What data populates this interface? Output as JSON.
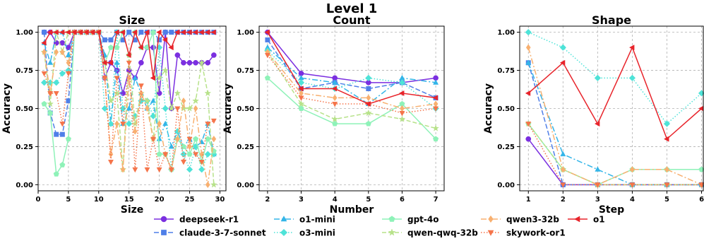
{
  "suptitle": "Level 1",
  "colors": {
    "deepseek-r1": "#7b2fe0",
    "claude-3-7-sonnet": "#4f7fe8",
    "o1-mini": "#33b5e8",
    "o3-mini": "#4ee3d8",
    "gpt-4o": "#8ef2b8",
    "qwen-qwq-32b": "#b7e28a",
    "qwen3-32b": "#f8b070",
    "skywork-or1": "#f5744a",
    "o1": "#e8242b"
  },
  "legend": {
    "placement": "bottom",
    "entries": [
      "deepseek-r1",
      "claude-3-7-sonnet",
      "o1-mini",
      "o3-mini",
      "gpt-4o",
      "qwen-qwq-32b",
      "qwen3-32b",
      "skywork-or1",
      "o1"
    ]
  },
  "chart_data": [
    {
      "type": "line",
      "title": "Size",
      "xlabel": "Size",
      "ylabel": "Accuracy",
      "xlim": [
        0,
        31
      ],
      "ylim": [
        -0.04,
        1.04
      ],
      "xticks": [
        0,
        5,
        10,
        15,
        20,
        25,
        30
      ],
      "yticks": [
        "0.00",
        "0.25",
        "0.50",
        "0.75",
        "1.00"
      ],
      "grid": true,
      "x": [
        1,
        2,
        3,
        4,
        5,
        6,
        7,
        8,
        9,
        10,
        11,
        12,
        13,
        14,
        15,
        16,
        17,
        18,
        19,
        20,
        21,
        22,
        23,
        24,
        25,
        26,
        27,
        28,
        29
      ],
      "series": [
        {
          "name": "deepseek-r1",
          "values": [
            1.0,
            1.0,
            0.93,
            0.93,
            0.9,
            1.0,
            1.0,
            1.0,
            1.0,
            1.0,
            0.7,
            0.8,
            0.75,
            0.6,
            0.75,
            0.7,
            0.8,
            0.9,
            0.9,
            0.6,
            1.0,
            0.5,
            0.85,
            0.8,
            0.8,
            0.8,
            0.8,
            0.8,
            0.85
          ]
        },
        {
          "name": "claude-3-7-sonnet",
          "values": [
            1.0,
            0.47,
            0.33,
            0.33,
            0.55,
            1.0,
            1.0,
            1.0,
            1.0,
            1.0,
            0.95,
            0.95,
            1.0,
            0.95,
            1.0,
            0.95,
            1.0,
            1.0,
            1.0,
            0.95,
            1.0,
            1.0,
            1.0,
            1.0,
            1.0,
            1.0,
            1.0,
            1.0,
            1.0
          ]
        },
        {
          "name": "o1-mini",
          "values": [
            0.93,
            0.8,
            1.0,
            1.0,
            0.85,
            1.0,
            1.0,
            1.0,
            1.0,
            1.0,
            0.85,
            0.4,
            0.8,
            0.4,
            0.5,
            0.7,
            0.6,
            0.5,
            0.55,
            0.3,
            0.4,
            0.25,
            0.35,
            0.25,
            0.3,
            0.25,
            0.28,
            0.4,
            0.2
          ]
        },
        {
          "name": "o3-mini",
          "values": [
            0.67,
            0.67,
            0.67,
            0.73,
            0.75,
            1.0,
            1.0,
            1.0,
            1.0,
            1.0,
            0.5,
            0.4,
            1.0,
            0.5,
            0.4,
            0.45,
            0.55,
            0.55,
            0.45,
            0.9,
            0.5,
            0.1,
            0.35,
            0.2,
            0.1,
            0.25,
            0.1,
            0.2,
            0.2
          ]
        },
        {
          "name": "gpt-4o",
          "values": [
            0.53,
            0.47,
            0.07,
            0.13,
            0.3,
            1.0,
            1.0,
            1.0,
            1.0,
            1.0,
            0.8,
            0.9,
            0.9,
            1.0,
            0.85,
            1.0,
            0.9,
            0.9,
            1.0,
            0.2,
            0.2,
            0.1,
            0.3,
            0.25,
            0.2,
            0.3,
            0.15,
            0.3,
            0.22
          ]
        },
        {
          "name": "qwen-qwq-32b",
          "values": [
            0.87,
            0.53,
            1.0,
            0.87,
            1.0,
            1.0,
            1.0,
            1.0,
            1.0,
            1.0,
            0.8,
            0.55,
            0.6,
            0.1,
            0.85,
            0.4,
            0.6,
            0.55,
            0.3,
            0.7,
            0.75,
            0.5,
            0.6,
            0.5,
            0.5,
            0.55,
            0.8,
            0.6,
            0.0
          ]
        },
        {
          "name": "qwen3-32b",
          "values": [
            0.87,
            0.6,
            0.87,
            0.87,
            0.8,
            1.0,
            1.0,
            1.0,
            1.0,
            1.0,
            0.7,
            0.2,
            0.4,
            0.1,
            0.7,
            0.35,
            0.6,
            0.5,
            0.3,
            0.4,
            0.2,
            0.1,
            0.3,
            0.55,
            0.25,
            0.5,
            0.2,
            0.0,
            0.3
          ]
        },
        {
          "name": "skywork-or1",
          "values": [
            0.73,
            0.6,
            0.6,
            0.4,
            0.73,
            1.0,
            1.0,
            1.0,
            1.0,
            1.0,
            0.7,
            0.15,
            0.7,
            0.4,
            0.8,
            0.1,
            0.65,
            0.1,
            0.3,
            0.1,
            0.2,
            0.1,
            0.5,
            0.15,
            0.3,
            0.2,
            0.15,
            0.4,
            0.42
          ]
        },
        {
          "name": "o1",
          "values": [
            0.93,
            1.0,
            1.0,
            1.0,
            1.0,
            1.0,
            1.0,
            1.0,
            1.0,
            1.0,
            0.8,
            0.8,
            1.0,
            1.0,
            0.85,
            1.0,
            0.9,
            1.0,
            0.7,
            1.0,
            0.95,
            0.9,
            1.0,
            1.0,
            1.0,
            1.0,
            1.0,
            1.0,
            1.0
          ]
        }
      ]
    },
    {
      "type": "line",
      "title": "Count",
      "xlabel": "Number",
      "ylabel": "Accuracy",
      "xlim": [
        1.75,
        7.25
      ],
      "ylim": [
        -0.04,
        1.04
      ],
      "xticks": [
        2,
        3,
        4,
        5,
        6,
        7
      ],
      "yticks": [
        "0.00",
        "0.25",
        "0.50",
        "0.75",
        "1.00"
      ],
      "grid": true,
      "x": [
        2,
        3,
        4,
        5,
        6,
        7
      ],
      "series": [
        {
          "name": "deepseek-r1",
          "values": [
            1.0,
            0.73,
            0.7,
            0.67,
            0.67,
            0.7
          ]
        },
        {
          "name": "claude-3-7-sonnet",
          "values": [
            0.95,
            0.63,
            0.67,
            0.63,
            0.67,
            0.57
          ]
        },
        {
          "name": "o1-mini",
          "values": [
            0.9,
            0.7,
            0.67,
            0.53,
            0.7,
            0.67
          ]
        },
        {
          "name": "o3-mini",
          "values": [
            0.88,
            0.67,
            0.63,
            0.7,
            0.67,
            0.5
          ]
        },
        {
          "name": "gpt-4o",
          "values": [
            0.7,
            0.5,
            0.4,
            0.4,
            0.53,
            0.3
          ]
        },
        {
          "name": "qwen-qwq-32b",
          "values": [
            0.87,
            0.53,
            0.43,
            0.47,
            0.43,
            0.37
          ]
        },
        {
          "name": "qwen3-32b",
          "values": [
            0.87,
            0.6,
            0.57,
            0.57,
            0.5,
            0.53
          ]
        },
        {
          "name": "skywork-or1",
          "values": [
            0.85,
            0.57,
            0.53,
            0.53,
            0.47,
            0.5
          ]
        },
        {
          "name": "o1",
          "values": [
            1.0,
            0.63,
            0.63,
            0.53,
            0.6,
            0.57
          ]
        }
      ]
    },
    {
      "type": "line",
      "title": "Shape",
      "xlabel": "Step",
      "ylabel": "Accuracy",
      "xlim": [
        0.75,
        6.05
      ],
      "ylim": [
        -0.04,
        1.04
      ],
      "xticks": [
        1,
        2,
        3,
        4,
        5,
        6
      ],
      "yticks": [
        "0.00",
        "0.25",
        "0.50",
        "0.75",
        "1.00"
      ],
      "grid": true,
      "x": [
        1,
        2,
        3,
        4,
        5,
        6
      ],
      "series": [
        {
          "name": "deepseek-r1",
          "values": [
            0.3,
            0.0,
            0.0,
            0.0,
            0.0,
            0.0
          ]
        },
        {
          "name": "claude-3-7-sonnet",
          "values": [
            0.8,
            0.0,
            0.0,
            0.0,
            0.0,
            0.0
          ]
        },
        {
          "name": "o1-mini",
          "values": [
            0.8,
            0.2,
            0.1,
            0.0,
            0.0,
            0.0
          ]
        },
        {
          "name": "o3-mini",
          "values": [
            1.0,
            0.9,
            0.7,
            0.7,
            0.4,
            0.6
          ]
        },
        {
          "name": "gpt-4o",
          "values": [
            0.4,
            0.1,
            0.0,
            0.1,
            0.1,
            0.1
          ]
        },
        {
          "name": "qwen-qwq-32b",
          "values": [
            0.4,
            0.1,
            0.0,
            0.0,
            0.0,
            0.0
          ]
        },
        {
          "name": "qwen3-32b",
          "values": [
            0.9,
            0.1,
            0.0,
            0.1,
            0.1,
            0.0
          ]
        },
        {
          "name": "skywork-or1",
          "values": [
            0.4,
            0.0,
            0.0,
            0.0,
            0.0,
            0.0
          ]
        },
        {
          "name": "o1",
          "values": [
            0.6,
            0.8,
            0.4,
            0.9,
            0.3,
            0.5
          ]
        }
      ]
    }
  ]
}
